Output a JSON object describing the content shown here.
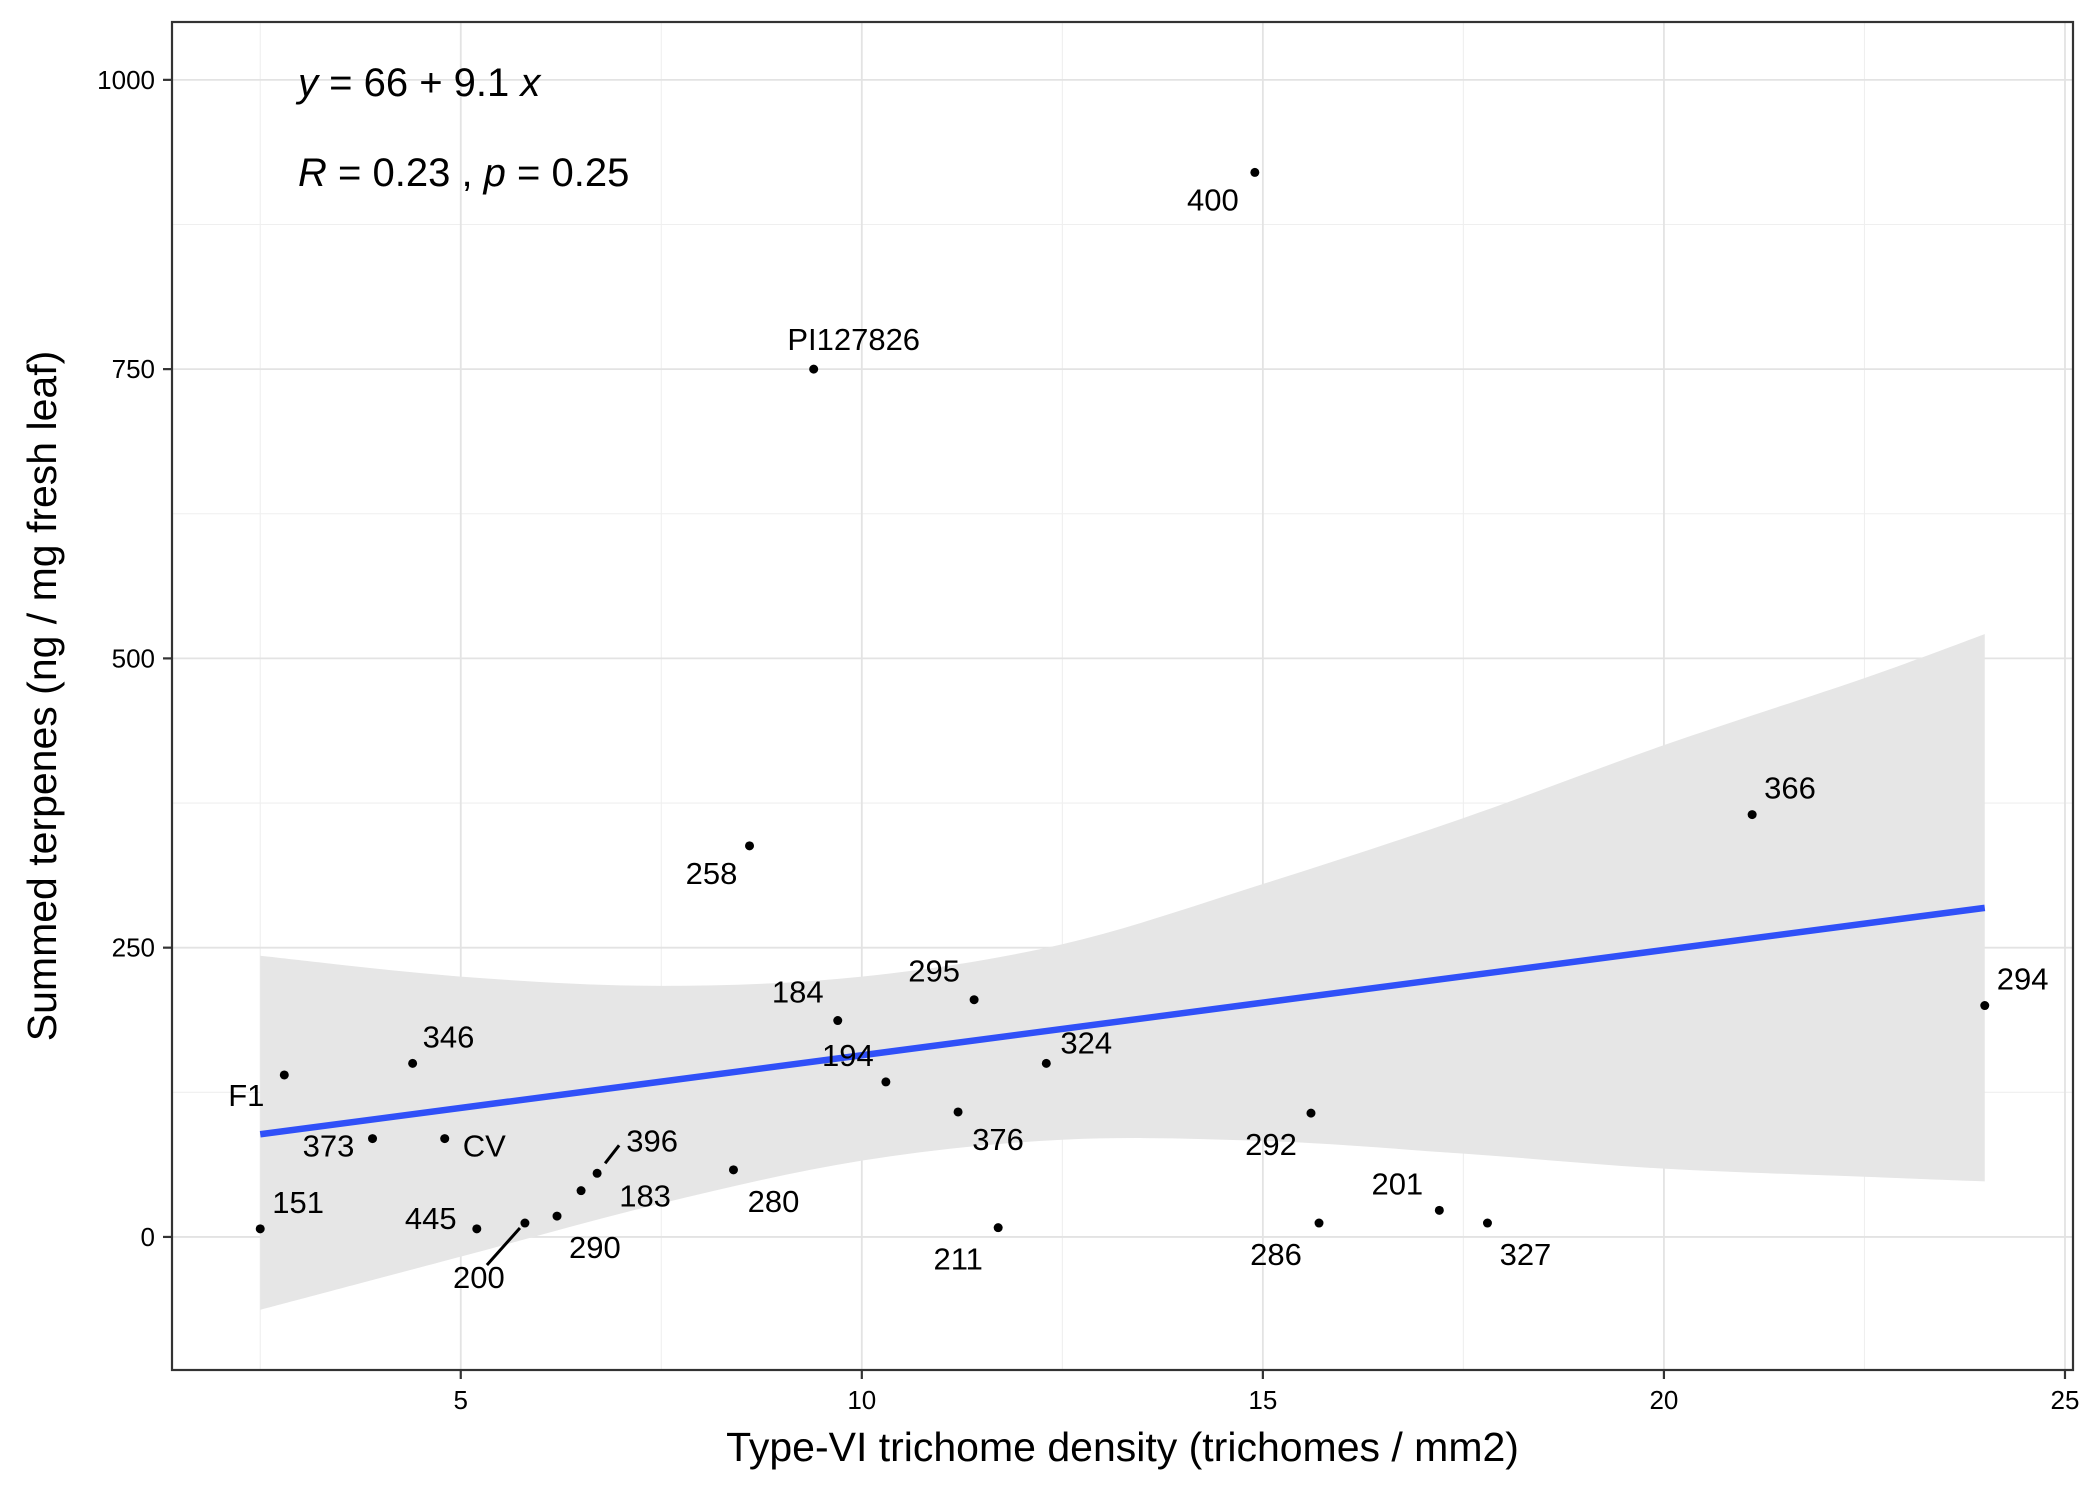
{
  "chart_data": {
    "type": "scatter",
    "title": "",
    "xlabel": "Type-VI trichome density (trichomes / mm2)",
    "ylabel": "Summed terpenes (ng / mg fresh leaf)",
    "xlim": [
      1.4,
      25.1
    ],
    "ylim": [
      -115,
      1050
    ],
    "x_ticks": [
      5,
      10,
      15,
      20,
      25
    ],
    "x_tick_labels": [
      "5",
      "10",
      "15",
      "20",
      "25"
    ],
    "y_ticks": [
      0,
      250,
      500,
      750,
      1000
    ],
    "y_tick_labels": [
      "0",
      "250",
      "500",
      "750",
      "1000"
    ],
    "grid": true,
    "legend": "none",
    "annotation": {
      "equation": {
        "prefix": "y",
        "rest": " = 66 + 9.1 ",
        "var": "x"
      },
      "stats": {
        "r_sym": "R",
        "r_rest": " = 0.23 , ",
        "p_sym": "p",
        "p_rest": " = 0.25"
      }
    },
    "regression": {
      "intercept": 66,
      "slope": 9.1,
      "x_range": [
        2.5,
        24.0
      ],
      "color": "#3050f8"
    },
    "confidence_band": {
      "color": "#e6e6e6",
      "x": [
        2.5,
        5,
        7.5,
        10,
        12.5,
        15,
        17.5,
        20,
        22.5,
        24
      ],
      "lower": [
        -63,
        -17,
        29,
        66,
        84,
        83,
        72,
        59,
        52,
        48
      ],
      "upper": [
        243,
        225,
        217,
        225,
        253,
        305,
        362,
        425,
        483,
        521
      ]
    },
    "points": [
      {
        "label": "400",
        "x": 14.9,
        "y": 920
      },
      {
        "label": "PI127826",
        "x": 9.4,
        "y": 750
      },
      {
        "label": "366",
        "x": 21.1,
        "y": 365
      },
      {
        "label": "258",
        "x": 8.6,
        "y": 338
      },
      {
        "label": "295",
        "x": 11.4,
        "y": 205
      },
      {
        "label": "294",
        "x": 24.0,
        "y": 200
      },
      {
        "label": "184",
        "x": 9.7,
        "y": 187
      },
      {
        "label": "324",
        "x": 12.3,
        "y": 150
      },
      {
        "label": "346",
        "x": 4.4,
        "y": 150
      },
      {
        "label": "F1",
        "x": 2.8,
        "y": 140
      },
      {
        "label": "194",
        "x": 10.3,
        "y": 134
      },
      {
        "label": "376",
        "x": 11.2,
        "y": 108
      },
      {
        "label": "292",
        "x": 15.6,
        "y": 107
      },
      {
        "label": "373",
        "x": 3.9,
        "y": 85
      },
      {
        "label": "CV",
        "x": 4.8,
        "y": 85
      },
      {
        "label": "280",
        "x": 8.4,
        "y": 58
      },
      {
        "label": "396",
        "x": 6.7,
        "y": 55
      },
      {
        "label": "183",
        "x": 6.5,
        "y": 40
      },
      {
        "label": "201",
        "x": 17.2,
        "y": 23
      },
      {
        "label": "290",
        "x": 6.2,
        "y": 18
      },
      {
        "label": "200",
        "x": 5.8,
        "y": 12
      },
      {
        "label": "286",
        "x": 15.7,
        "y": 12
      },
      {
        "label": "327",
        "x": 17.8,
        "y": 12
      },
      {
        "label": "211",
        "x": 11.7,
        "y": 8
      },
      {
        "label": "151",
        "x": 2.5,
        "y": 7
      },
      {
        "label": "445",
        "x": 5.2,
        "y": 7
      }
    ]
  }
}
